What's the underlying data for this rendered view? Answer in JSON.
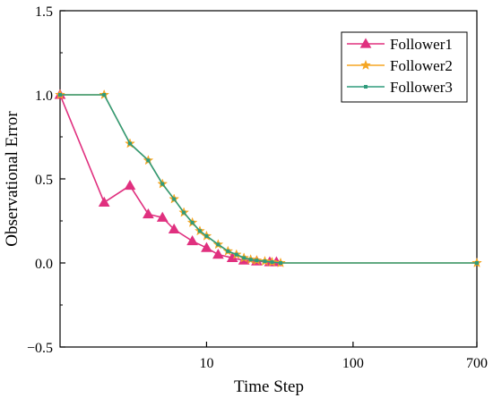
{
  "chart_data": {
    "type": "line",
    "title": "",
    "xlabel": "Time Step",
    "ylabel": "Observational Error",
    "x_scale": "log",
    "xlim": [
      1,
      700
    ],
    "ylim": [
      -0.5,
      1.5
    ],
    "x_ticks": [
      10,
      100,
      700
    ],
    "x_tick_labels": [
      "10",
      "100",
      "700"
    ],
    "y_ticks": [
      -0.5,
      0.0,
      0.5,
      1.0,
      1.5
    ],
    "y_tick_labels": [
      "−0.5",
      "0.0",
      "0.5",
      "1.0",
      "1.5"
    ],
    "grid": false,
    "legend_position": "top-right",
    "series": [
      {
        "name": "Follower1",
        "color": "#e0307f",
        "marker": "triangle",
        "x": [
          1,
          2,
          3,
          4,
          5,
          6,
          8,
          10,
          12,
          15,
          18,
          22,
          27,
          30
        ],
        "y": [
          1.0,
          0.36,
          0.46,
          0.29,
          0.27,
          0.2,
          0.13,
          0.09,
          0.05,
          0.03,
          0.015,
          0.01,
          0.005,
          0.005
        ]
      },
      {
        "name": "Follower2",
        "color": "#f5a623",
        "marker": "star",
        "x": [
          1,
          2,
          3,
          4,
          5,
          6,
          7,
          8,
          9,
          10,
          12,
          14,
          16,
          18,
          20,
          22,
          25,
          28,
          32,
          700
        ],
        "y": [
          1.0,
          1.0,
          0.71,
          0.61,
          0.47,
          0.38,
          0.3,
          0.24,
          0.19,
          0.16,
          0.11,
          0.07,
          0.05,
          0.03,
          0.02,
          0.015,
          0.01,
          0.005,
          0.0,
          0.0
        ]
      },
      {
        "name": "Follower3",
        "color": "#2e9b7c",
        "marker": "square",
        "x": [
          1,
          2,
          3,
          4,
          5,
          6,
          7,
          8,
          9,
          10,
          12,
          14,
          16,
          18,
          20,
          22,
          25,
          28,
          32,
          700
        ],
        "y": [
          1.0,
          1.0,
          0.71,
          0.61,
          0.47,
          0.38,
          0.3,
          0.24,
          0.19,
          0.16,
          0.11,
          0.07,
          0.05,
          0.03,
          0.02,
          0.015,
          0.01,
          0.005,
          0.0,
          0.0
        ]
      }
    ]
  }
}
